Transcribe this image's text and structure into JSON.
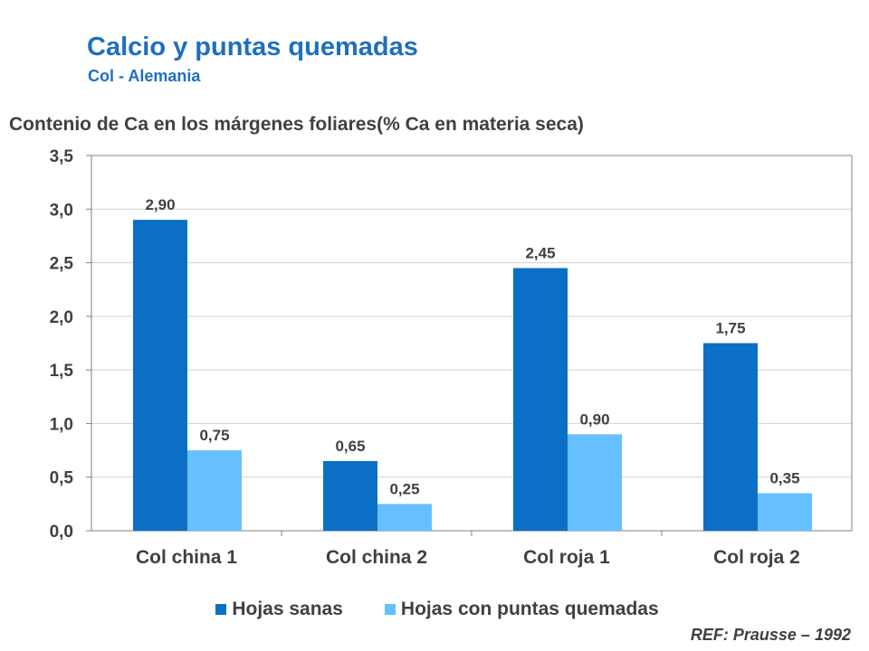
{
  "title": "Calcio y puntas quemadas",
  "subtitle": "Col - Alemania",
  "reference": "REF: Prausse – 1992",
  "chart_data": {
    "type": "bar",
    "title": "Calcio y puntas quemadas",
    "subtitle": "Col - Alemania",
    "ylabel": "Contenio de Ca en los márgenes foliares(% Ca en materia seca)",
    "xlabel": "",
    "categories": [
      "Col china 1",
      "Col china 2",
      "Col roja 1",
      "Col roja 2"
    ],
    "series": [
      {
        "name": "Hojas sanas",
        "color": "#0b6fc6",
        "values": [
          2.9,
          0.65,
          2.45,
          1.75
        ],
        "labels": [
          "2,90",
          "0,65",
          "2,45",
          "1,75"
        ]
      },
      {
        "name": "Hojas con puntas quemadas",
        "color": "#66bfff",
        "values": [
          0.75,
          0.25,
          0.9,
          0.35
        ],
        "labels": [
          "0,75",
          "0,25",
          "0,90",
          "0,35"
        ]
      }
    ],
    "ylim": [
      0,
      3.5
    ],
    "yticks": [
      0,
      0.5,
      1.0,
      1.5,
      2.0,
      2.5,
      3.0,
      3.5
    ],
    "ytick_labels": [
      "0,0",
      "0,5",
      "1,0",
      "1,5",
      "2,0",
      "2,5",
      "3,0",
      "3,5"
    ],
    "grid": true,
    "legend": "bottom"
  }
}
